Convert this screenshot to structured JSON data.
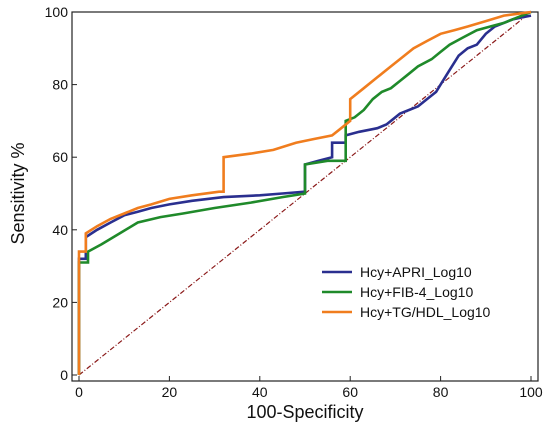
{
  "chart_data": {
    "type": "line",
    "title": "",
    "xlabel": "100-Specificity",
    "ylabel": "Sensitivity %",
    "xlim": [
      0,
      100
    ],
    "ylim": [
      0,
      100
    ],
    "xticks": [
      0,
      20,
      40,
      60,
      80,
      100
    ],
    "yticks": [
      0,
      20,
      40,
      60,
      80,
      100
    ],
    "xtick_labels": [
      "0",
      "20",
      "40",
      "60",
      "80",
      "100"
    ],
    "ytick_labels": [
      "0",
      "20",
      "40",
      "60",
      "80",
      "100"
    ],
    "grid": false,
    "legend_position": "bottom-right",
    "reference_line": {
      "style": "dash-dot",
      "color": "#8b1a1a",
      "x": [
        0,
        100
      ],
      "y": [
        0,
        100
      ]
    },
    "series": [
      {
        "name": "Hcy+APRI_Log10",
        "color": "#2a2f8f",
        "x": [
          0,
          0,
          1.5,
          1.5,
          4,
          7,
          10,
          13,
          16,
          20,
          25,
          32,
          40,
          45,
          50,
          50,
          53,
          56,
          56,
          59,
          59,
          62,
          66,
          68,
          70,
          71,
          73,
          75,
          77,
          79,
          80,
          82,
          84,
          86,
          88,
          90,
          92,
          94,
          96,
          98,
          100
        ],
        "y": [
          0,
          32,
          32,
          38,
          40,
          42,
          44,
          45,
          46,
          47,
          48,
          49,
          49.5,
          50,
          50.5,
          58,
          59,
          60,
          64,
          64,
          66,
          67,
          68,
          69,
          71,
          72,
          73,
          74,
          76,
          78,
          80,
          84,
          88,
          90,
          91,
          94,
          96,
          97,
          98,
          98.5,
          99
        ]
      },
      {
        "name": "Hcy+FIB-4_Log10",
        "color": "#1f8a2a",
        "x": [
          0,
          0,
          2,
          2,
          5,
          9,
          13,
          18,
          23,
          30,
          38,
          45,
          50,
          50,
          55,
          59,
          59,
          61,
          63,
          65,
          67,
          69,
          71,
          73,
          75,
          78,
          80,
          82,
          85,
          88,
          91,
          94,
          97,
          100
        ],
        "y": [
          0,
          31,
          31,
          34,
          36,
          39,
          42,
          43.5,
          44.5,
          46,
          47.5,
          49,
          50,
          58,
          59,
          59,
          70,
          71,
          73,
          76,
          78,
          79,
          81,
          83,
          85,
          87,
          89,
          91,
          93,
          95,
          96,
          97,
          98.5,
          100
        ]
      },
      {
        "name": "Hcy+TG/HDL_Log10",
        "color": "#f07d1e",
        "x": [
          0,
          0,
          1.5,
          1.5,
          4,
          7,
          10,
          13,
          16,
          20,
          25,
          31,
          32,
          32,
          38,
          43,
          48,
          52,
          56,
          58,
          60,
          60,
          63,
          66,
          69,
          72,
          74,
          77,
          80,
          83,
          86,
          90,
          94,
          97,
          100
        ],
        "y": [
          0,
          34,
          34,
          39,
          41,
          43,
          44.5,
          46,
          47,
          48.5,
          49.5,
          50.5,
          50.5,
          60,
          61,
          62,
          64,
          65,
          66,
          68,
          70,
          76,
          79,
          82,
          85,
          88,
          90,
          92,
          94,
          95,
          96,
          97.5,
          99,
          99.5,
          100
        ]
      }
    ]
  }
}
